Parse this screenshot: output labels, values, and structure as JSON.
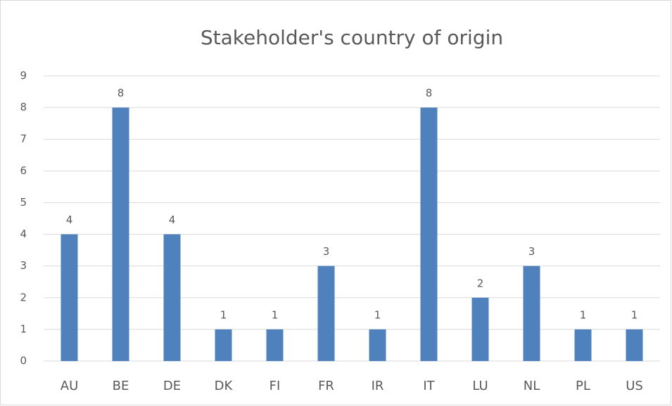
{
  "chart_data": {
    "type": "bar",
    "title": "Stakeholder's country of origin",
    "categories": [
      "AU",
      "BE",
      "DE",
      "DK",
      "FI",
      "FR",
      "IR",
      "IT",
      "LU",
      "NL",
      "PL",
      "US"
    ],
    "values": [
      4,
      8,
      4,
      1,
      1,
      3,
      1,
      8,
      2,
      3,
      1,
      1
    ],
    "color": "#4f81bd",
    "ylim": [
      0,
      9
    ],
    "yticks": [
      0,
      1,
      2,
      3,
      4,
      5,
      6,
      7,
      8,
      9
    ],
    "grid": true,
    "data_labels": true
  }
}
